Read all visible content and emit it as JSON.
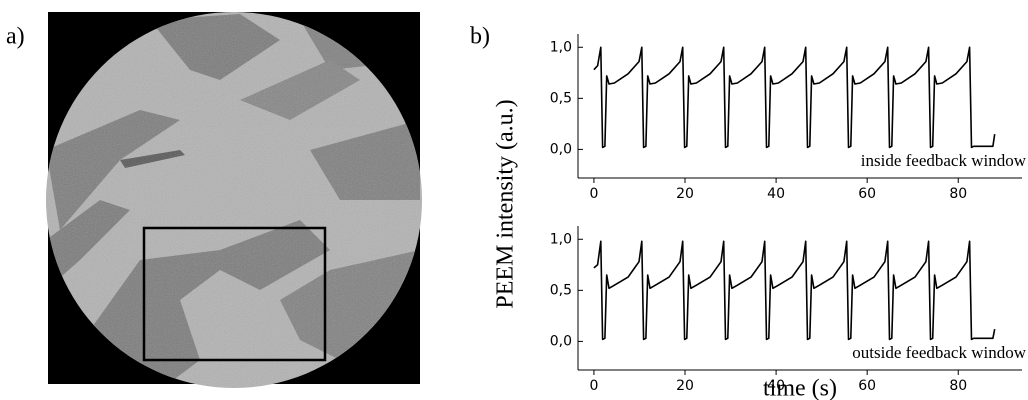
{
  "panel_labels": [
    "a)",
    "b)"
  ],
  "y_label": "PEEM intensity (a.u.)",
  "chart_data": [
    {
      "type": "line",
      "annotation": "inside feedback window",
      "color": "#000000",
      "xlim": [
        -3.5,
        94
      ],
      "ylim": [
        -0.28,
        1.13
      ],
      "xticks": [
        0,
        20,
        40,
        60,
        80
      ],
      "yticks": [
        {
          "value": 0,
          "label": "0,0"
        },
        {
          "value": 0.5,
          "label": "0,5"
        },
        {
          "value": 1,
          "label": "1,0"
        }
      ],
      "x": [
        0,
        0.8,
        1.5,
        1.9,
        2.4,
        2.8,
        3.3,
        4.5,
        7.5,
        9.9,
        10.5,
        10.9,
        11.4,
        11.8,
        12.3,
        13.5,
        16.5,
        18.9,
        19.5,
        19.9,
        20.4,
        20.8,
        21.3,
        22.5,
        25.5,
        27.9,
        28.5,
        28.9,
        29.4,
        29.8,
        30.3,
        31.5,
        34.5,
        36.9,
        37.5,
        37.9,
        38.4,
        38.8,
        39.3,
        40.5,
        43.5,
        45.9,
        46.5,
        46.9,
        47.4,
        47.8,
        48.3,
        49.5,
        52.5,
        54.9,
        55.5,
        55.9,
        56.4,
        56.8,
        57.3,
        58.5,
        61.5,
        63.9,
        64.5,
        64.9,
        65.4,
        65.8,
        66.3,
        67.5,
        70.5,
        72.9,
        73.5,
        73.9,
        74.4,
        74.8,
        75.3,
        76.5,
        79.5,
        81.9,
        82.5,
        82.9,
        83.4,
        87.6,
        88
      ],
      "values": [
        0.78,
        0.82,
        1.0,
        0.02,
        0.03,
        0.72,
        0.64,
        0.65,
        0.74,
        0.86,
        1.0,
        0.02,
        0.03,
        0.72,
        0.64,
        0.65,
        0.74,
        0.86,
        1.0,
        0.02,
        0.03,
        0.72,
        0.64,
        0.65,
        0.74,
        0.86,
        1.0,
        0.02,
        0.03,
        0.72,
        0.64,
        0.65,
        0.74,
        0.86,
        1.0,
        0.02,
        0.03,
        0.72,
        0.64,
        0.65,
        0.74,
        0.86,
        1.0,
        0.02,
        0.03,
        0.72,
        0.64,
        0.65,
        0.74,
        0.86,
        1.0,
        0.02,
        0.03,
        0.72,
        0.64,
        0.65,
        0.74,
        0.86,
        1.0,
        0.02,
        0.03,
        0.72,
        0.64,
        0.65,
        0.74,
        0.86,
        1.0,
        0.02,
        0.03,
        0.72,
        0.64,
        0.65,
        0.74,
        0.86,
        1.0,
        0.02,
        0.03,
        0.03,
        0.15
      ]
    },
    {
      "type": "line",
      "annotation": "outside feedback window",
      "x_label": "time (s)",
      "color": "#000000",
      "xlim": [
        -3.5,
        94
      ],
      "ylim": [
        -0.28,
        1.13
      ],
      "xticks": [
        0,
        20,
        40,
        60,
        80
      ],
      "yticks": [
        {
          "value": 0,
          "label": "0,0"
        },
        {
          "value": 0.5,
          "label": "0,5"
        },
        {
          "value": 1,
          "label": "1,0"
        }
      ],
      "x": [
        0,
        0.8,
        1.5,
        1.9,
        2.4,
        2.8,
        3.3,
        4.5,
        7.5,
        9.9,
        10.5,
        10.9,
        11.4,
        11.8,
        12.3,
        13.5,
        16.5,
        18.9,
        19.5,
        19.9,
        20.4,
        20.8,
        21.3,
        22.5,
        25.5,
        27.9,
        28.5,
        28.9,
        29.4,
        29.8,
        30.3,
        31.5,
        34.5,
        36.9,
        37.5,
        37.9,
        38.4,
        38.8,
        39.3,
        40.5,
        43.5,
        45.9,
        46.5,
        46.9,
        47.4,
        47.8,
        48.3,
        49.5,
        52.5,
        54.9,
        55.5,
        55.9,
        56.4,
        56.8,
        57.3,
        58.5,
        61.5,
        63.9,
        64.5,
        64.9,
        65.4,
        65.8,
        66.3,
        67.5,
        70.5,
        72.9,
        73.5,
        73.9,
        74.4,
        74.8,
        75.3,
        76.5,
        79.5,
        81.9,
        82.5,
        82.9,
        83.4,
        87.6,
        88
      ],
      "values": [
        0.72,
        0.75,
        0.98,
        0.02,
        0.03,
        0.65,
        0.52,
        0.55,
        0.63,
        0.78,
        0.98,
        0.02,
        0.03,
        0.65,
        0.52,
        0.55,
        0.63,
        0.78,
        0.98,
        0.02,
        0.03,
        0.65,
        0.52,
        0.55,
        0.63,
        0.78,
        0.98,
        0.02,
        0.03,
        0.65,
        0.52,
        0.55,
        0.63,
        0.78,
        0.98,
        0.02,
        0.03,
        0.65,
        0.52,
        0.55,
        0.63,
        0.78,
        0.98,
        0.02,
        0.03,
        0.65,
        0.52,
        0.55,
        0.63,
        0.78,
        0.98,
        0.02,
        0.03,
        0.65,
        0.52,
        0.55,
        0.63,
        0.78,
        0.98,
        0.02,
        0.03,
        0.65,
        0.52,
        0.55,
        0.63,
        0.78,
        0.98,
        0.02,
        0.03,
        0.65,
        0.52,
        0.55,
        0.63,
        0.78,
        0.98,
        0.02,
        0.03,
        0.03,
        0.12
      ]
    }
  ]
}
